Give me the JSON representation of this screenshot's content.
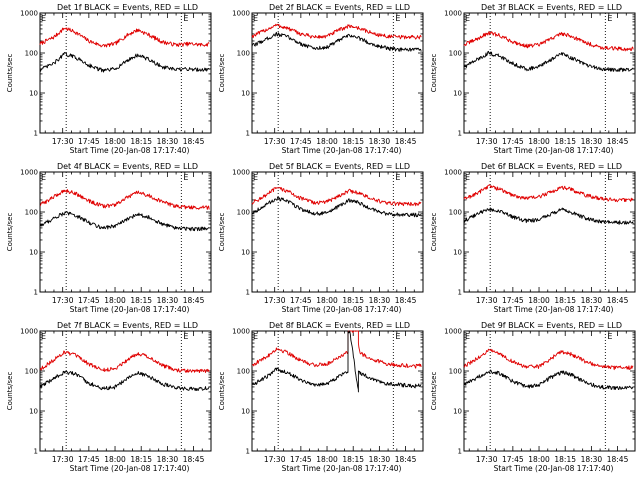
{
  "colors": {
    "background": "#ffffff",
    "events_series": "#000000",
    "lld_series": "#e00000"
  },
  "chart_data": [
    {
      "type": "line",
      "title": "Det 1f BLACK = Events, RED = LLD",
      "xlabel": "Start Time (20-Jan-08 17:17:40)",
      "ylabel": "Counts/sec",
      "y_scale": "log",
      "ylim": [
        1,
        1000
      ],
      "y_tick_labels": [
        "1",
        "10",
        "100",
        "1000"
      ],
      "xlim": [
        "17:17",
        "18:55"
      ],
      "x_tick_labels": [
        "17:30",
        "17:45",
        "18:00",
        "18:15",
        "18:30",
        "18:45"
      ],
      "markers": [
        {
          "time": "17:32",
          "label": "E"
        },
        {
          "time": "18:38",
          "label": "E"
        }
      ],
      "series": [
        {
          "color": "#e00000",
          "x": [
            "17:17",
            "17:25",
            "17:31",
            "17:37",
            "17:45",
            "17:53",
            "18:00",
            "18:07",
            "18:13",
            "18:19",
            "18:27",
            "18:35",
            "18:43",
            "18:50",
            "18:54"
          ],
          "values": [
            170,
            250,
            420,
            340,
            200,
            150,
            170,
            280,
            380,
            290,
            190,
            160,
            170,
            160,
            165
          ]
        },
        {
          "color": "#000000",
          "x": [
            "17:17",
            "17:25",
            "17:31",
            "17:37",
            "17:45",
            "17:53",
            "18:00",
            "18:07",
            "18:13",
            "18:19",
            "18:27",
            "18:35",
            "18:43",
            "18:50",
            "18:54"
          ],
          "values": [
            38,
            55,
            95,
            80,
            50,
            36,
            40,
            65,
            90,
            70,
            45,
            38,
            40,
            38,
            40
          ]
        }
      ]
    },
    {
      "type": "line",
      "title": "Det 2f BLACK = Events, RED = LLD",
      "xlabel": "Start Time (20-Jan-08 17:17:40)",
      "ylabel": "Counts/sec",
      "y_scale": "log",
      "ylim": [
        1,
        1000
      ],
      "y_tick_labels": [
        "1",
        "10",
        "100",
        "1000"
      ],
      "xlim": [
        "17:17",
        "18:55"
      ],
      "x_tick_labels": [
        "17:30",
        "17:45",
        "18:00",
        "18:15",
        "18:30",
        "18:45"
      ],
      "markers": [
        {
          "time": "17:32",
          "label": "E"
        },
        {
          "time": "18:38",
          "label": "E"
        }
      ],
      "series": [
        {
          "color": "#e00000",
          "x": [
            "17:17",
            "17:25",
            "17:31",
            "17:37",
            "17:45",
            "17:53",
            "18:00",
            "18:07",
            "18:13",
            "18:19",
            "18:27",
            "18:35",
            "18:43",
            "18:50",
            "18:54"
          ],
          "values": [
            260,
            380,
            500,
            420,
            300,
            250,
            260,
            380,
            480,
            410,
            300,
            260,
            250,
            250,
            250
          ]
        },
        {
          "color": "#000000",
          "x": [
            "17:17",
            "17:25",
            "17:31",
            "17:37",
            "17:45",
            "17:53",
            "18:00",
            "18:07",
            "18:13",
            "18:19",
            "18:27",
            "18:35",
            "18:43",
            "18:50",
            "18:54"
          ],
          "values": [
            150,
            220,
            300,
            260,
            170,
            130,
            140,
            210,
            280,
            230,
            160,
            130,
            120,
            120,
            120
          ]
        }
      ]
    },
    {
      "type": "line",
      "title": "Det 3f BLACK = Events, RED = LLD",
      "xlabel": "Start Time (20-Jan-08 17:17:40)",
      "ylabel": "Counts/sec",
      "y_scale": "log",
      "ylim": [
        1,
        1000
      ],
      "y_tick_labels": [
        "1",
        "10",
        "100",
        "1000"
      ],
      "xlim": [
        "17:17",
        "18:55"
      ],
      "x_tick_labels": [
        "17:30",
        "17:45",
        "18:00",
        "18:15",
        "18:30",
        "18:45"
      ],
      "markers": [
        {
          "time": "17:32",
          "label": "E"
        },
        {
          "time": "18:38",
          "label": "E"
        }
      ],
      "series": [
        {
          "color": "#e00000",
          "x": [
            "17:17",
            "17:25",
            "17:31",
            "17:37",
            "17:45",
            "17:53",
            "18:00",
            "18:07",
            "18:13",
            "18:19",
            "18:27",
            "18:35",
            "18:43",
            "18:50",
            "18:54"
          ],
          "values": [
            160,
            230,
            320,
            280,
            190,
            150,
            160,
            230,
            310,
            260,
            180,
            140,
            130,
            125,
            130
          ]
        },
        {
          "color": "#000000",
          "x": [
            "17:17",
            "17:25",
            "17:31",
            "17:37",
            "17:45",
            "17:53",
            "18:00",
            "18:07",
            "18:13",
            "18:19",
            "18:27",
            "18:35",
            "18:43",
            "18:50",
            "18:54"
          ],
          "values": [
            45,
            70,
            100,
            85,
            55,
            40,
            45,
            70,
            95,
            75,
            50,
            40,
            38,
            38,
            40
          ]
        }
      ]
    },
    {
      "type": "line",
      "title": "Det 4f BLACK = Events, RED = LLD",
      "xlabel": "Start Time (20-Jan-08 17:17:40)",
      "ylabel": "Counts/sec",
      "y_scale": "log",
      "ylim": [
        1,
        1000
      ],
      "y_tick_labels": [
        "1",
        "10",
        "100",
        "1000"
      ],
      "xlim": [
        "17:17",
        "18:55"
      ],
      "x_tick_labels": [
        "17:30",
        "17:45",
        "18:00",
        "18:15",
        "18:30",
        "18:45"
      ],
      "markers": [
        {
          "time": "17:32",
          "label": "E"
        },
        {
          "time": "18:38",
          "label": "E"
        }
      ],
      "series": [
        {
          "color": "#e00000",
          "x": [
            "17:17",
            "17:25",
            "17:31",
            "17:37",
            "17:45",
            "17:53",
            "18:00",
            "18:07",
            "18:13",
            "18:19",
            "18:27",
            "18:35",
            "18:43",
            "18:50",
            "18:54"
          ],
          "values": [
            150,
            240,
            350,
            300,
            190,
            140,
            150,
            230,
            310,
            260,
            180,
            140,
            130,
            130,
            130
          ]
        },
        {
          "color": "#000000",
          "x": [
            "17:17",
            "17:25",
            "17:31",
            "17:37",
            "17:45",
            "17:53",
            "18:00",
            "18:07",
            "18:13",
            "18:19",
            "18:27",
            "18:35",
            "18:43",
            "18:50",
            "18:54"
          ],
          "values": [
            45,
            70,
            95,
            85,
            55,
            40,
            45,
            65,
            90,
            75,
            50,
            40,
            38,
            38,
            40
          ]
        }
      ]
    },
    {
      "type": "line",
      "title": "Det 5f BLACK = Events, RED = LLD",
      "xlabel": "Start Time (20-Jan-08 17:17:40)",
      "ylabel": "Counts/sec",
      "y_scale": "log",
      "ylim": [
        1,
        1000
      ],
      "y_tick_labels": [
        "1",
        "10",
        "100",
        "1000"
      ],
      "xlim": [
        "17:17",
        "18:55"
      ],
      "x_tick_labels": [
        "17:30",
        "17:45",
        "18:00",
        "18:15",
        "18:30",
        "18:45"
      ],
      "markers": [
        {
          "time": "17:32",
          "label": "E"
        },
        {
          "time": "18:38",
          "label": "E"
        }
      ],
      "series": [
        {
          "color": "#e00000",
          "x": [
            "17:17",
            "17:25",
            "17:31",
            "17:37",
            "17:45",
            "17:53",
            "18:00",
            "18:07",
            "18:13",
            "18:19",
            "18:27",
            "18:35",
            "18:43",
            "18:50",
            "18:54"
          ],
          "values": [
            170,
            260,
            400,
            340,
            220,
            170,
            180,
            260,
            340,
            290,
            200,
            165,
            160,
            160,
            160
          ]
        },
        {
          "color": "#000000",
          "x": [
            "17:17",
            "17:25",
            "17:31",
            "17:37",
            "17:45",
            "17:53",
            "18:00",
            "18:07",
            "18:13",
            "18:19",
            "18:27",
            "18:35",
            "18:43",
            "18:50",
            "18:54"
          ],
          "values": [
            95,
            150,
            220,
            190,
            120,
            90,
            95,
            140,
            200,
            165,
            110,
            90,
            85,
            85,
            85
          ]
        }
      ]
    },
    {
      "type": "line",
      "title": "Det 6f BLACK = Events, RED = LLD",
      "xlabel": "Start Time (20-Jan-08 17:17:40)",
      "ylabel": "Counts/sec",
      "y_scale": "log",
      "ylim": [
        1,
        1000
      ],
      "y_tick_labels": [
        "1",
        "10",
        "100",
        "1000"
      ],
      "xlim": [
        "17:17",
        "18:55"
      ],
      "x_tick_labels": [
        "17:30",
        "17:45",
        "18:00",
        "18:15",
        "18:30",
        "18:45"
      ],
      "markers": [
        {
          "time": "17:32",
          "label": "E"
        },
        {
          "time": "18:38",
          "label": "E"
        }
      ],
      "series": [
        {
          "color": "#e00000",
          "x": [
            "17:17",
            "17:25",
            "17:31",
            "17:37",
            "17:45",
            "17:53",
            "18:00",
            "18:07",
            "18:13",
            "18:19",
            "18:27",
            "18:35",
            "18:43",
            "18:50",
            "18:54"
          ],
          "values": [
            210,
            300,
            450,
            380,
            260,
            220,
            240,
            320,
            420,
            360,
            260,
            220,
            200,
            200,
            200
          ]
        },
        {
          "color": "#000000",
          "x": [
            "17:17",
            "17:25",
            "17:31",
            "17:37",
            "17:45",
            "17:53",
            "18:00",
            "18:07",
            "18:13",
            "18:19",
            "18:27",
            "18:35",
            "18:43",
            "18:50",
            "18:54"
          ],
          "values": [
            60,
            90,
            120,
            105,
            75,
            60,
            65,
            90,
            115,
            95,
            70,
            58,
            55,
            55,
            56
          ]
        }
      ]
    },
    {
      "type": "line",
      "title": "Det 7f BLACK = Events, RED = LLD",
      "xlabel": "Start Time (20-Jan-08 17:17:40)",
      "ylabel": "Counts/sec",
      "y_scale": "log",
      "ylim": [
        1,
        1000
      ],
      "y_tick_labels": [
        "1",
        "10",
        "100",
        "1000"
      ],
      "xlim": [
        "17:17",
        "18:55"
      ],
      "x_tick_labels": [
        "17:30",
        "17:45",
        "18:00",
        "18:15",
        "18:30",
        "18:45"
      ],
      "markers": [
        {
          "time": "17:32",
          "label": "E"
        },
        {
          "time": "18:38",
          "label": "E"
        }
      ],
      "series": [
        {
          "color": "#e00000",
          "x": [
            "17:17",
            "17:25",
            "17:31",
            "17:37",
            "17:45",
            "17:53",
            "18:00",
            "18:07",
            "18:13",
            "18:19",
            "18:27",
            "18:35",
            "18:43",
            "18:50",
            "18:54"
          ],
          "values": [
            110,
            190,
            300,
            250,
            150,
            105,
            115,
            190,
            280,
            230,
            140,
            105,
            100,
            100,
            100
          ]
        },
        {
          "color": "#000000",
          "x": [
            "17:17",
            "17:25",
            "17:31",
            "17:37",
            "17:45",
            "17:53",
            "18:00",
            "18:07",
            "18:13",
            "18:19",
            "18:27",
            "18:35",
            "18:43",
            "18:50",
            "18:54"
          ],
          "values": [
            40,
            65,
            95,
            85,
            50,
            36,
            40,
            65,
            90,
            75,
            48,
            38,
            36,
            36,
            38
          ]
        }
      ]
    },
    {
      "type": "line",
      "title": "Det 8f BLACK = Events, RED = LLD",
      "xlabel": "Start Time (20-Jan-08 17:17:40)",
      "ylabel": "Counts/sec",
      "y_scale": "log",
      "ylim": [
        1,
        1000
      ],
      "y_tick_labels": [
        "1",
        "10",
        "100",
        "1000"
      ],
      "xlim": [
        "17:17",
        "18:55"
      ],
      "x_tick_labels": [
        "17:30",
        "17:45",
        "18:00",
        "18:15",
        "18:30",
        "18:45"
      ],
      "markers": [
        {
          "time": "17:32",
          "label": "E"
        },
        {
          "time": "18:38",
          "label": "E"
        }
      ],
      "series": [
        {
          "color": "#e00000",
          "x": [
            "17:17",
            "17:25",
            "17:31",
            "17:37",
            "17:45",
            "17:53",
            "18:00",
            "18:07",
            "18:12",
            "18:12",
            "18:13",
            "18:18",
            "18:18",
            "18:19",
            "18:27",
            "18:35",
            "18:43",
            "18:50",
            "18:54"
          ],
          "values": [
            140,
            220,
            360,
            300,
            180,
            140,
            150,
            230,
            300,
            1000,
            1000,
            1000,
            500,
            280,
            190,
            150,
            140,
            130,
            140
          ]
        },
        {
          "color": "#000000",
          "x": [
            "17:17",
            "17:25",
            "17:31",
            "17:37",
            "17:45",
            "17:53",
            "18:00",
            "18:07",
            "18:12",
            "18:12",
            "18:13",
            "18:18",
            "18:18",
            "18:19",
            "18:27",
            "18:35",
            "18:43",
            "18:50",
            "18:54"
          ],
          "values": [
            45,
            70,
            110,
            95,
            60,
            45,
            48,
            75,
            100,
            1000,
            1000,
            30,
            100,
            90,
            60,
            48,
            45,
            42,
            45
          ]
        }
      ]
    },
    {
      "type": "line",
      "title": "Det 9f BLACK = Events, RED = LLD",
      "xlabel": "Start Time (20-Jan-08 17:17:40)",
      "ylabel": "Counts/sec",
      "y_scale": "log",
      "ylim": [
        1,
        1000
      ],
      "y_tick_labels": [
        "1",
        "10",
        "100",
        "1000"
      ],
      "xlim": [
        "17:17",
        "18:55"
      ],
      "x_tick_labels": [
        "17:30",
        "17:45",
        "18:00",
        "18:15",
        "18:30",
        "18:45"
      ],
      "markers": [
        {
          "time": "17:32",
          "label": "E"
        },
        {
          "time": "18:38",
          "label": "E"
        }
      ],
      "series": [
        {
          "color": "#e00000",
          "x": [
            "17:17",
            "17:25",
            "17:31",
            "17:37",
            "17:45",
            "17:53",
            "18:00",
            "18:07",
            "18:13",
            "18:19",
            "18:27",
            "18:35",
            "18:43",
            "18:50",
            "18:54"
          ],
          "values": [
            130,
            210,
            330,
            280,
            170,
            125,
            130,
            210,
            310,
            260,
            170,
            130,
            120,
            120,
            125
          ]
        },
        {
          "color": "#000000",
          "x": [
            "17:17",
            "17:25",
            "17:31",
            "17:37",
            "17:45",
            "17:53",
            "18:00",
            "18:07",
            "18:13",
            "18:19",
            "18:27",
            "18:35",
            "18:43",
            "18:50",
            "18:54"
          ],
          "values": [
            45,
            70,
            100,
            90,
            55,
            40,
            45,
            70,
            95,
            80,
            50,
            40,
            38,
            38,
            40
          ]
        }
      ]
    }
  ]
}
